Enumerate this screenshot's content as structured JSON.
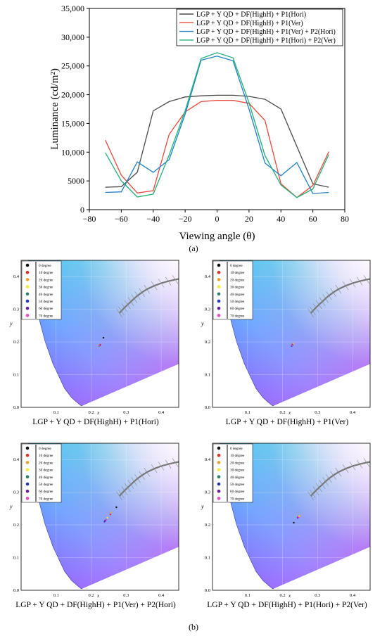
{
  "chart_data": [
    {
      "type": "line",
      "xlabel": "Viewing angle (θ)",
      "ylabel": "Luminance (cd/m²)",
      "xlim": [
        -80,
        80
      ],
      "ylim": [
        0,
        35000
      ],
      "xticks": [
        "−80",
        "−60",
        "−40",
        "−20",
        "0",
        "20",
        "40",
        "60",
        "80"
      ],
      "yticks": [
        "0",
        "5000",
        "10,000",
        "15,000",
        "20,000",
        "25,000",
        "30,000",
        "35,000"
      ],
      "legend_position": "top-right",
      "grid": false,
      "series": [
        {
          "name": "LGP + Y QD + DF(HighH) + P1(Hori)",
          "color": "#4a4a4a",
          "x": [
            -70,
            -60,
            -50,
            -40,
            -30,
            -20,
            -10,
            0,
            10,
            20,
            30,
            40,
            50,
            60,
            70
          ],
          "y": [
            3900,
            4000,
            6500,
            17200,
            18800,
            19600,
            19800,
            19900,
            19900,
            19700,
            19200,
            17500,
            11000,
            4500,
            3900
          ]
        },
        {
          "name": "LGP + Y QD + DF(HighH) + P1(Ver)",
          "color": "#e8483b",
          "x": [
            -70,
            -60,
            -50,
            -40,
            -30,
            -20,
            -10,
            0,
            10,
            20,
            30,
            40,
            50,
            60,
            70
          ],
          "y": [
            12100,
            6000,
            2900,
            3300,
            13100,
            17000,
            18800,
            19000,
            19000,
            18500,
            15500,
            4500,
            2100,
            4200,
            10100
          ]
        },
        {
          "name": "LGP + Y QD + DF(HighH) + P1(Ver) + P2(Hori)",
          "color": "#1f7fc4",
          "x": [
            -70,
            -60,
            -50,
            -40,
            -30,
            -20,
            -10,
            0,
            10,
            20,
            30,
            40,
            50,
            60,
            70
          ],
          "y": [
            3000,
            3100,
            8300,
            6500,
            8700,
            16600,
            26000,
            26700,
            25900,
            17500,
            8100,
            5900,
            8200,
            2800,
            3000
          ]
        },
        {
          "name": "LGP + Y QD + DF(HighH) + P1(Hori) + P2(Ver)",
          "color": "#22b07a",
          "x": [
            -70,
            -60,
            -50,
            -40,
            -30,
            -20,
            -10,
            0,
            10,
            20,
            30,
            40,
            50,
            60,
            70
          ],
          "y": [
            9900,
            5000,
            2200,
            2700,
            9500,
            17200,
            26300,
            27300,
            26400,
            18600,
            9400,
            4300,
            2100,
            3600,
            9600
          ]
        }
      ]
    },
    {
      "type": "scatter",
      "title": "LGP + Y QD + DF(HighH) + P1(Hori)",
      "xlabel": "x",
      "ylabel": "y",
      "xlim": [
        0,
        0.45
      ],
      "ylim": [
        0,
        0.45
      ],
      "points": [
        {
          "label": "0 degree",
          "x": 0.235,
          "y": 0.213
        },
        {
          "label": "10 degree",
          "x": 0.226,
          "y": 0.192
        },
        {
          "label": "20 degree",
          "x": 0.225,
          "y": 0.19
        },
        {
          "label": "30 degree",
          "x": 0.224,
          "y": 0.188
        },
        {
          "label": "40 degree",
          "x": 0.223,
          "y": 0.188
        },
        {
          "label": "50 degree",
          "x": 0.224,
          "y": 0.189
        },
        {
          "label": "60 degree",
          "x": 0.225,
          "y": 0.19
        },
        {
          "label": "70 degree",
          "x": 0.223,
          "y": 0.189
        }
      ]
    },
    {
      "type": "scatter",
      "title": "LGP + Y QD + DF(HighH) + P1(Ver)",
      "xlabel": "x",
      "ylabel": "y",
      "xlim": [
        0,
        0.45
      ],
      "ylim": [
        0,
        0.45
      ],
      "points": [
        {
          "label": "0 degree",
          "x": 0.228,
          "y": 0.19
        },
        {
          "label": "10 degree",
          "x": 0.229,
          "y": 0.194
        },
        {
          "label": "20 degree",
          "x": 0.23,
          "y": 0.195
        },
        {
          "label": "30 degree",
          "x": 0.229,
          "y": 0.193
        },
        {
          "label": "40 degree",
          "x": 0.228,
          "y": 0.19
        },
        {
          "label": "50 degree",
          "x": 0.226,
          "y": 0.188
        },
        {
          "label": "60 degree",
          "x": 0.228,
          "y": 0.192
        },
        {
          "label": "70 degree",
          "x": 0.227,
          "y": 0.19
        }
      ]
    },
    {
      "type": "scatter",
      "title": "LGP + Y QD + DF(HighH) + P1(Ver) + P2(Hori)",
      "xlabel": "x",
      "ylabel": "y",
      "xlim": [
        0,
        0.45
      ],
      "ylim": [
        0,
        0.45
      ],
      "points": [
        {
          "label": "0 degree",
          "x": 0.272,
          "y": 0.254
        },
        {
          "label": "10 degree",
          "x": 0.255,
          "y": 0.232
        },
        {
          "label": "20 degree",
          "x": 0.257,
          "y": 0.238
        },
        {
          "label": "30 degree",
          "x": 0.246,
          "y": 0.222
        },
        {
          "label": "40 degree",
          "x": 0.242,
          "y": 0.216
        },
        {
          "label": "50 degree",
          "x": 0.24,
          "y": 0.213
        },
        {
          "label": "60 degree",
          "x": 0.238,
          "y": 0.21
        },
        {
          "label": "70 degree",
          "x": 0.243,
          "y": 0.215
        }
      ]
    },
    {
      "type": "scatter",
      "title": "LGP + Y QD + DF(HighH) + P1(Hori) + P2(Ver)",
      "xlabel": "x",
      "ylabel": "y",
      "xlim": [
        0,
        0.45
      ],
      "ylim": [
        0,
        0.45
      ],
      "points": [
        {
          "label": "0 degree",
          "x": 0.232,
          "y": 0.207
        },
        {
          "label": "10 degree",
          "x": 0.246,
          "y": 0.224
        },
        {
          "label": "20 degree",
          "x": 0.25,
          "y": 0.228
        },
        {
          "label": "30 degree",
          "x": 0.247,
          "y": 0.226
        },
        {
          "label": "40 degree",
          "x": 0.245,
          "y": 0.224
        },
        {
          "label": "50 degree",
          "x": 0.243,
          "y": 0.222
        },
        {
          "label": "60 degree",
          "x": 0.244,
          "y": 0.223
        },
        {
          "label": "70 degree",
          "x": 0.245,
          "y": 0.224
        }
      ]
    }
  ],
  "legend_labels": [
    "0 degree",
    "10 degree",
    "20 degree",
    "30 degree",
    "40 degree",
    "50 degree",
    "60 degree",
    "70 degree"
  ],
  "legend_colors": [
    "#111111",
    "#e5302a",
    "#f2a12a",
    "#f5e93a",
    "#2e7d6e",
    "#2435c4",
    "#6a1fa0",
    "#e84ac2"
  ],
  "cie_ticks": [
    "0.1",
    "0.2",
    "0.3",
    "0.4"
  ],
  "cie_yticks": [
    "0.0",
    "0.1",
    "0.2",
    "0.3",
    "0.4"
  ],
  "caption_a": "(a)",
  "caption_b": "(b)"
}
